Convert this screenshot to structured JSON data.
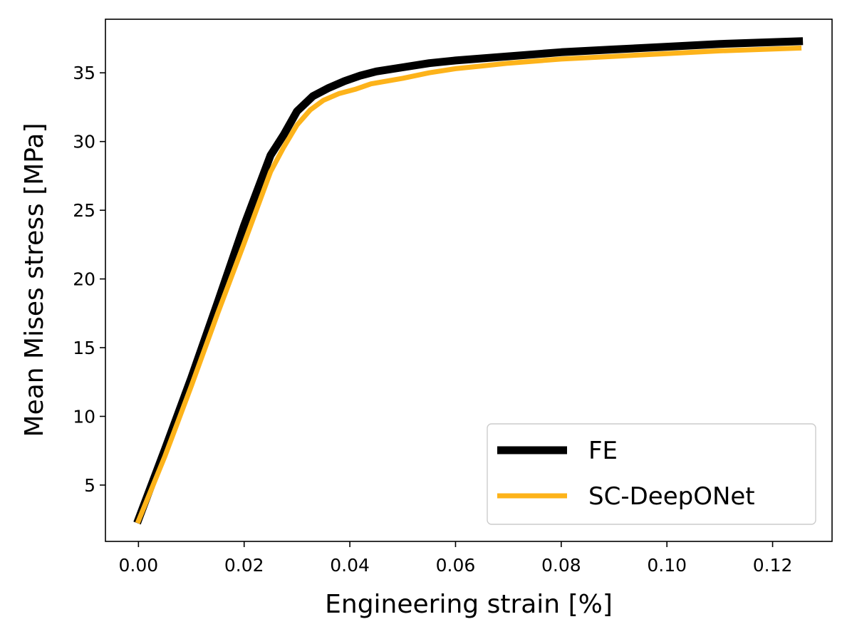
{
  "chart_data": {
    "type": "line",
    "title": "",
    "xlabel": "Engineering strain [%]",
    "ylabel": "Mean Mises stress [MPa]",
    "xlim": [
      -0.00625,
      0.13125
    ],
    "ylim": [
      0.9,
      38.9
    ],
    "xticks": [
      0.0,
      0.02,
      0.04,
      0.06,
      0.08,
      0.1,
      0.12
    ],
    "xtick_labels": [
      "0.00",
      "0.02",
      "0.04",
      "0.06",
      "0.08",
      "0.10",
      "0.12"
    ],
    "yticks": [
      5,
      10,
      15,
      20,
      25,
      30,
      35
    ],
    "ytick_labels": [
      "5",
      "10",
      "15",
      "20",
      "25",
      "30",
      "35"
    ],
    "grid": false,
    "legend_position": "bottom-right",
    "series": [
      {
        "name": "FE",
        "color": "#000000",
        "x": [
          0.0,
          0.005,
          0.01,
          0.015,
          0.02,
          0.025,
          0.0275,
          0.03,
          0.033,
          0.036,
          0.039,
          0.042,
          0.045,
          0.05,
          0.055,
          0.06,
          0.07,
          0.08,
          0.09,
          0.1,
          0.11,
          0.125
        ],
        "y": [
          2.5,
          7.6,
          12.8,
          18.3,
          23.9,
          29.0,
          30.5,
          32.2,
          33.3,
          33.9,
          34.4,
          34.8,
          35.1,
          35.4,
          35.7,
          35.9,
          36.2,
          36.5,
          36.7,
          36.9,
          37.1,
          37.3
        ]
      },
      {
        "name": "SC-DeepONet",
        "color": "#FDB31A",
        "x": [
          0.0,
          0.005,
          0.01,
          0.015,
          0.02,
          0.025,
          0.0275,
          0.03,
          0.0325,
          0.035,
          0.038,
          0.041,
          0.044,
          0.047,
          0.05,
          0.055,
          0.06,
          0.065,
          0.07,
          0.08,
          0.09,
          0.1,
          0.11,
          0.125
        ],
        "y": [
          2.4,
          7.1,
          12.2,
          17.5,
          22.6,
          27.8,
          29.6,
          31.2,
          32.3,
          33.0,
          33.5,
          33.8,
          34.2,
          34.4,
          34.6,
          35.0,
          35.3,
          35.5,
          35.7,
          36.0,
          36.2,
          36.4,
          36.6,
          36.8
        ]
      }
    ]
  }
}
